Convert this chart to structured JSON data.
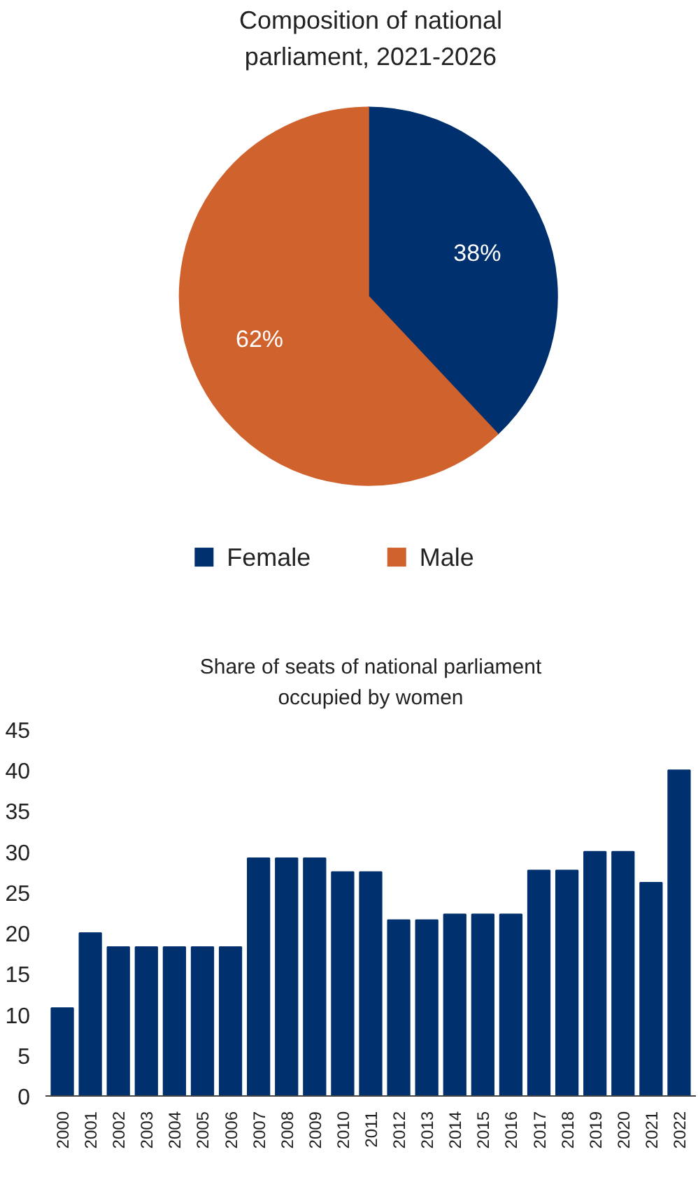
{
  "chart_data": [
    {
      "type": "pie",
      "title": "Composition of national parliament, 2021-2026",
      "categories": [
        "Female",
        "Male"
      ],
      "values": [
        38,
        62
      ],
      "colors": [
        "#00306e",
        "#d0622e"
      ],
      "value_labels": [
        "38%",
        "62%"
      ],
      "legend": "bottom"
    },
    {
      "type": "bar",
      "title": "Share of seats of national parliament occupied by women",
      "categories": [
        "2000",
        "2001",
        "2002",
        "2003",
        "2004",
        "2005",
        "2006",
        "2007",
        "2008",
        "2009",
        "2010",
        "2011",
        "2012",
        "2013",
        "2014",
        "2015",
        "2016",
        "2017",
        "2018",
        "2019",
        "2020",
        "2021",
        "2022"
      ],
      "values": [
        10.8,
        20.0,
        18.3,
        18.3,
        18.3,
        18.3,
        18.3,
        29.2,
        29.2,
        29.2,
        27.5,
        27.5,
        21.6,
        21.6,
        22.3,
        22.3,
        22.3,
        27.7,
        27.7,
        30.0,
        30.0,
        26.2,
        40.0
      ],
      "color": "#00306e",
      "ylim": [
        0,
        45
      ],
      "yticks": [
        0,
        5,
        10,
        15,
        20,
        25,
        30,
        35,
        40,
        45
      ],
      "grid": false,
      "legend": false
    }
  ]
}
